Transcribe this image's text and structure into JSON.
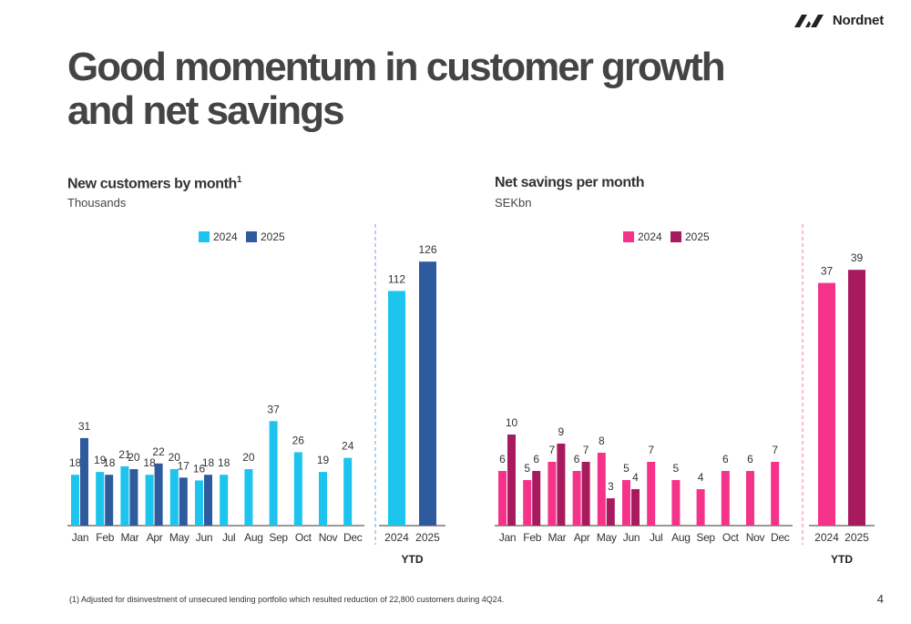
{
  "brand": {
    "name": "Nordnet"
  },
  "title": "Good momentum in customer growth and net savings",
  "footnote": "(1) Adjusted for disinvestment of unsecured lending portfolio which resulted reduction of 22,800 customers during 4Q24.",
  "page_number": "4",
  "chart_data": [
    {
      "type": "bar",
      "title": "New customers by month",
      "title_footnote_ref": "1",
      "subtitle": "Thousands",
      "categories": [
        "Jan",
        "Feb",
        "Mar",
        "Apr",
        "May",
        "Jun",
        "Jul",
        "Aug",
        "Sep",
        "Oct",
        "Nov",
        "Dec"
      ],
      "series": [
        {
          "name": "2024",
          "color": "#1cc4ee",
          "values": [
            18,
            19,
            21,
            18,
            20,
            16,
            18,
            20,
            37,
            26,
            19,
            24
          ]
        },
        {
          "name": "2025",
          "color": "#2e5a9e",
          "values": [
            31,
            18,
            20,
            22,
            17,
            18,
            null,
            null,
            null,
            null,
            null,
            null
          ]
        }
      ],
      "ytd": {
        "categories": [
          "2024",
          "2025"
        ],
        "values": [
          112,
          126
        ],
        "colors": [
          "#1cc4ee",
          "#2e5a9e"
        ],
        "label": "YTD"
      },
      "divider_color": "#7b9fcf",
      "legend_position": "top"
    },
    {
      "type": "bar",
      "title": "Net savings per month",
      "subtitle": "SEKbn",
      "categories": [
        "Jan",
        "Feb",
        "Mar",
        "Apr",
        "May",
        "Jun",
        "Jul",
        "Aug",
        "Sep",
        "Oct",
        "Nov",
        "Dec"
      ],
      "series": [
        {
          "name": "2024",
          "color": "#f5338a",
          "values": [
            6,
            5,
            7,
            6,
            8,
            5,
            7,
            5,
            4,
            6,
            6,
            7
          ]
        },
        {
          "name": "2025",
          "color": "#a81a5e",
          "values": [
            10,
            6,
            9,
            7,
            3,
            4,
            null,
            null,
            null,
            null,
            null,
            null
          ]
        }
      ],
      "ytd": {
        "categories": [
          "2024",
          "2025"
        ],
        "values": [
          37,
          39
        ],
        "colors": [
          "#f5338a",
          "#a81a5e"
        ],
        "label": "YTD"
      },
      "divider_color": "#f07aa8",
      "legend_position": "top"
    }
  ]
}
